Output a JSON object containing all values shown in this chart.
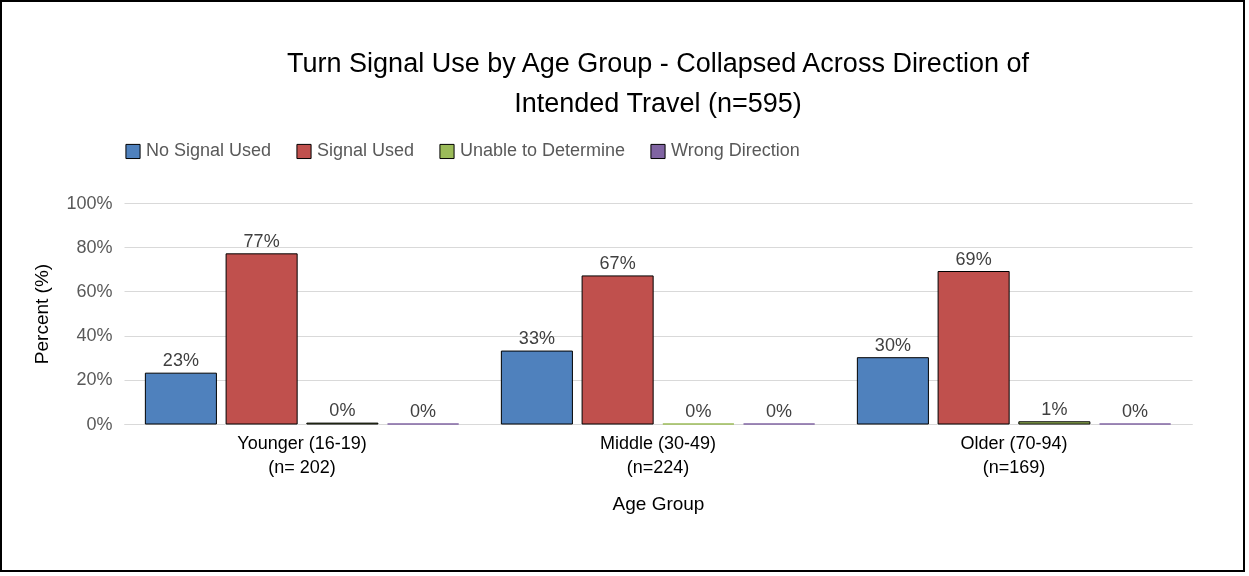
{
  "chart_data": {
    "type": "bar",
    "title": "Turn Signal Use by Age Group - Collapsed Across Direction of Intended Travel (n=595)",
    "xlabel": "Age Group",
    "ylabel": "Percent (%)",
    "categories": [
      "Younger (16-19)\n(n= 202)",
      "Middle (30-49)\n(n=224)",
      "Older (70-94)\n(n=169)"
    ],
    "series": [
      {
        "name": "No Signal Used",
        "color": "#4f81bd",
        "values": [
          23,
          33,
          30
        ],
        "value_labels": [
          "23%",
          "33%",
          "30%"
        ]
      },
      {
        "name": "Signal Used",
        "color": "#c0504d",
        "values": [
          77,
          67,
          69
        ],
        "value_labels": [
          "77%",
          "67%",
          "69%"
        ]
      },
      {
        "name": "Unable to Determine",
        "color": "#9bbb59",
        "values": [
          0.4,
          0,
          1
        ],
        "value_labels": [
          "0%",
          "0%",
          "1%"
        ]
      },
      {
        "name": "Wrong Direction",
        "color": "#8064a2",
        "values": [
          0,
          0,
          0
        ],
        "value_labels": [
          "0%",
          "0%",
          "0%"
        ]
      }
    ],
    "ylim": [
      0,
      100
    ],
    "yticks": [
      {
        "value": 0,
        "label": "0%"
      },
      {
        "value": 20,
        "label": "20%"
      },
      {
        "value": 40,
        "label": "40%"
      },
      {
        "value": 60,
        "label": "60%"
      },
      {
        "value": 80,
        "label": "80%"
      },
      {
        "value": 100,
        "label": "100%"
      }
    ],
    "grid": "y",
    "legend": "top"
  }
}
